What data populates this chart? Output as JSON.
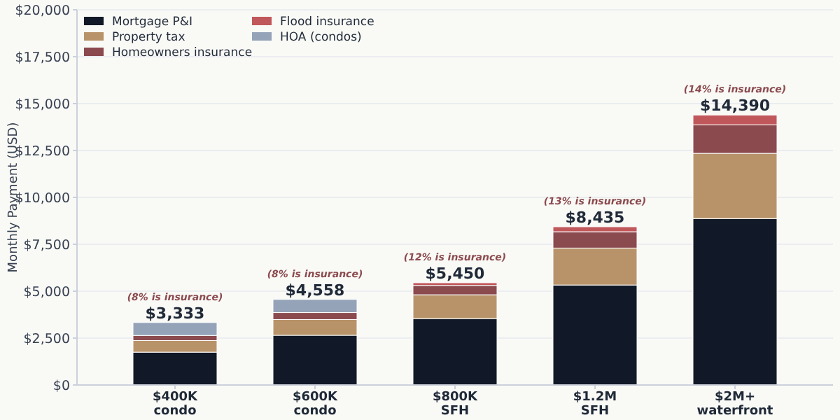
{
  "chart_data": {
    "type": "bar",
    "ylabel": "Monthly Payment (USD)",
    "categories": [
      "$400K\ncondo",
      "$600K\ncondo",
      "$800K\nSFH",
      "$1.2M\nSFH",
      "$2M+\nwaterfront"
    ],
    "stacked": true,
    "series": [
      {
        "name": "Mortgage P&I",
        "color": "#111827",
        "values": [
          1750,
          2650,
          3540,
          5330,
          8870
        ]
      },
      {
        "name": "Property tax",
        "color": "#b8936a",
        "values": [
          620,
          840,
          1270,
          1970,
          3480
        ]
      },
      {
        "name": "Homeowners insurance",
        "color": "#8b4a4e",
        "values": [
          270,
          370,
          500,
          870,
          1520
        ]
      },
      {
        "name": "Flood insurance",
        "color": "#c0575a",
        "values": [
          null,
          null,
          140,
          265,
          520
        ]
      },
      {
        "name": "HOA (condos)",
        "color": "#94a3b8",
        "values": [
          690,
          700,
          null,
          null,
          null
        ]
      }
    ],
    "totals": [
      "$3,333",
      "$4,558",
      "$5,450",
      "$8,435",
      "$14,390"
    ],
    "annotations": [
      {
        "text": "(8% is insurance)",
        "x": "$400K\ncondo",
        "y": 3333
      },
      {
        "text": "(8% is insurance)",
        "x": "$600K\ncondo",
        "y": 4558
      },
      {
        "text": "(12% is insurance)",
        "x": "$800K\nSFH",
        "y": 5450
      },
      {
        "text": "(13% is insurance)",
        "x": "$1.2M\nSFH",
        "y": 8435
      },
      {
        "text": "(14% is insurance)",
        "x": "$2M+\nwaterfront",
        "y": 14390
      }
    ],
    "ylim": [
      0,
      20000
    ],
    "yticks": [
      {
        "value": 0,
        "label": "$0"
      },
      {
        "value": 2500,
        "label": "$2,500"
      },
      {
        "value": 5000,
        "label": "$5,000"
      },
      {
        "value": 7500,
        "label": "$7,500"
      },
      {
        "value": 10000,
        "label": "$10,000"
      },
      {
        "value": 12500,
        "label": "$12,500"
      },
      {
        "value": 15000,
        "label": "$15,000"
      },
      {
        "value": 17500,
        "label": "$17,500"
      },
      {
        "value": 20000,
        "label": "$20,000"
      }
    ],
    "grid": "y",
    "legend": "top left"
  }
}
